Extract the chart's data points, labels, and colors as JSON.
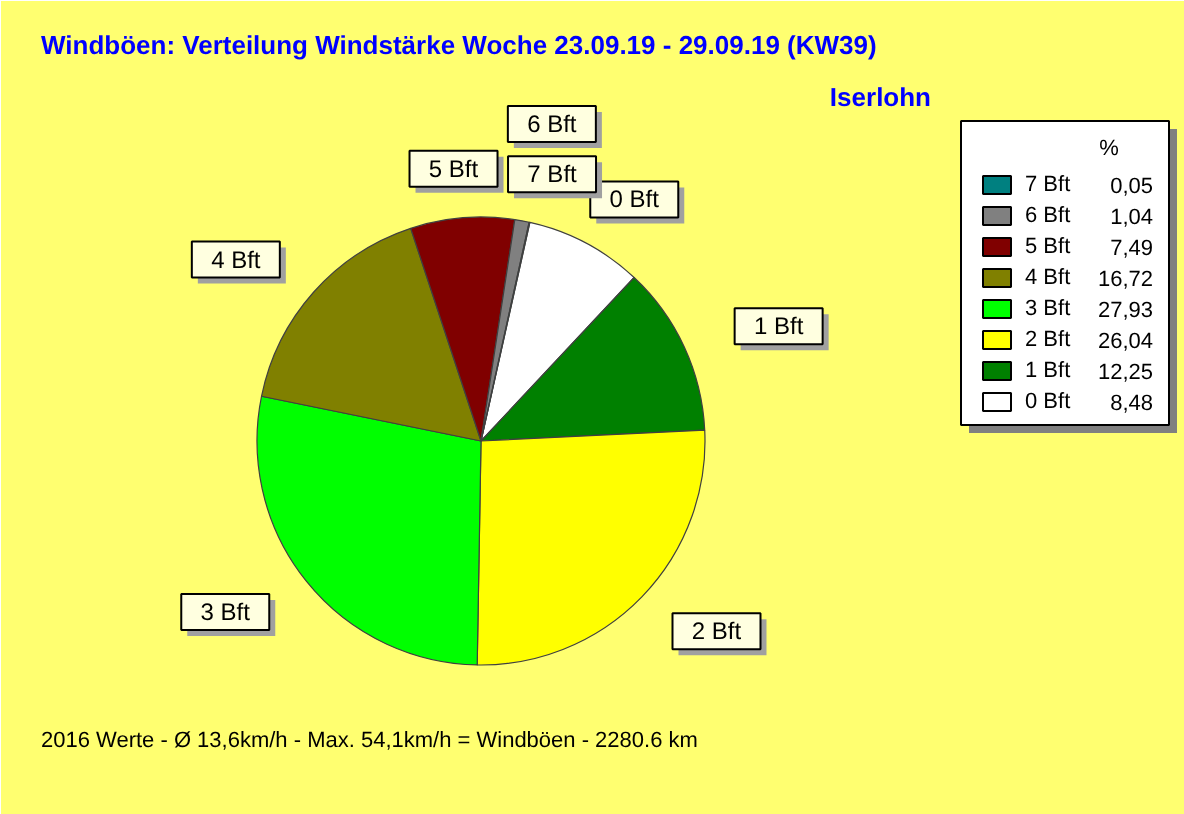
{
  "chart_data": {
    "type": "pie",
    "title": "Windböen: Verteilung Windstärke  Woche 23.09.19 - 29.09.19 (KW39)",
    "subtitle": "Iserlohn",
    "categories": [
      "0 Bft",
      "1 Bft",
      "2 Bft",
      "3 Bft",
      "4 Bft",
      "5 Bft",
      "6 Bft",
      "7 Bft"
    ],
    "values": [
      8.48,
      12.25,
      26.04,
      27.93,
      16.72,
      7.49,
      1.04,
      0.05
    ],
    "value_labels": [
      "8,48",
      "12,25",
      "26,04",
      "27,93",
      "16,72",
      "7,49",
      "1,04",
      "0,05"
    ],
    "colors": [
      "#ffffff",
      "#008000",
      "#ffff00",
      "#00ff00",
      "#808000",
      "#800000",
      "#808080",
      "#008080"
    ],
    "legend": "top right",
    "legend_title": "%",
    "annotations": [
      "2016 Werte   -   Ø 13,6km/h  -  Max. 54,1km/h = Windböen   -   2280.6 km"
    ]
  }
}
